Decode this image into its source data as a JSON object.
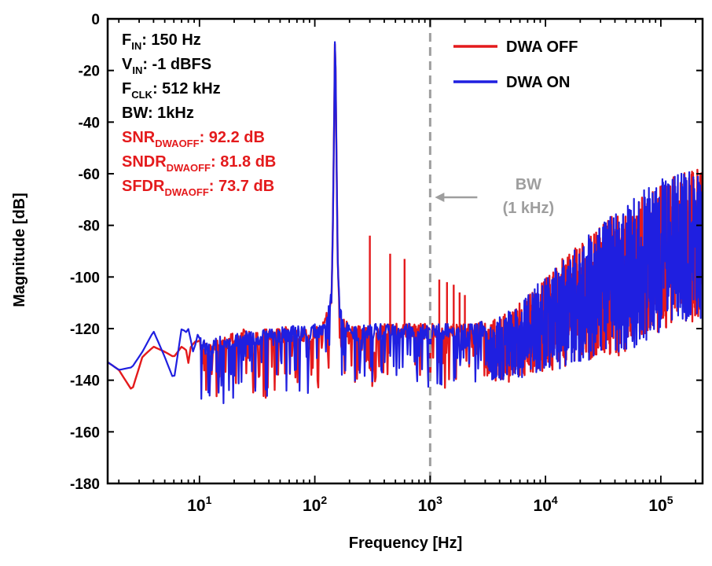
{
  "chart_data": {
    "type": "line",
    "xscale": "log",
    "xlabel": "Frequency [Hz]",
    "ylabel": "Magnitude [dB]",
    "xlim": [
      1.6,
      230000
    ],
    "ylim": [
      -180,
      0
    ],
    "yticks": [
      0,
      -20,
      -40,
      -60,
      -80,
      -100,
      -120,
      -140,
      -160,
      -180
    ],
    "xticks": [
      {
        "value": 10,
        "base": "10",
        "exp": "1"
      },
      {
        "value": 100,
        "base": "10",
        "exp": "2"
      },
      {
        "value": 1000,
        "base": "10",
        "exp": "3"
      },
      {
        "value": 10000,
        "base": "10",
        "exp": "4"
      },
      {
        "value": 100000,
        "base": "10",
        "exp": "5"
      }
    ],
    "grid": false,
    "legend_position": "top-right",
    "series": [
      {
        "name": "DWA OFF",
        "color": "#e41a1c",
        "points": [
          [
            1.6,
            -133
          ],
          [
            2,
            -136
          ],
          [
            2.6,
            -144
          ],
          [
            3.2,
            -131
          ],
          [
            4,
            -127
          ],
          [
            5,
            -129
          ],
          [
            6,
            -131
          ],
          [
            7,
            -127
          ],
          [
            8,
            -129
          ],
          [
            10,
            -126
          ],
          [
            12,
            -128
          ],
          [
            15,
            -126
          ],
          [
            20,
            -124
          ],
          [
            25,
            -123
          ],
          [
            30,
            -124
          ],
          [
            40,
            -123
          ],
          [
            60,
            -122
          ],
          [
            80,
            -122
          ],
          [
            100,
            -121
          ],
          [
            120,
            -120
          ],
          [
            135,
            -112
          ],
          [
            142,
            -95
          ],
          [
            147,
            -40
          ],
          [
            150,
            -1
          ],
          [
            153,
            -40
          ],
          [
            158,
            -95
          ],
          [
            165,
            -115
          ],
          [
            200,
            -122
          ],
          [
            300,
            -121
          ],
          [
            500,
            -121
          ],
          [
            1000,
            -121
          ],
          [
            2000,
            -121
          ],
          [
            3000,
            -120
          ],
          [
            4000,
            -117
          ],
          [
            5000,
            -114
          ],
          [
            7000,
            -108
          ],
          [
            10000,
            -101
          ],
          [
            15000,
            -93
          ],
          [
            20000,
            -88
          ],
          [
            30000,
            -81
          ],
          [
            50000,
            -73
          ],
          [
            80000,
            -66
          ],
          [
            120000,
            -62
          ],
          [
            170000,
            -60
          ],
          [
            230000,
            -59
          ]
        ],
        "spurs": [
          [
            300,
            -84
          ],
          [
            450,
            -91
          ],
          [
            600,
            -93
          ],
          [
            1200,
            -101
          ],
          [
            1400,
            -102
          ],
          [
            1600,
            -103
          ],
          [
            1800,
            -106
          ],
          [
            2000,
            -107
          ]
        ]
      },
      {
        "name": "DWA ON",
        "color": "#1f1fe0",
        "points": [
          [
            1.6,
            -133
          ],
          [
            2,
            -136
          ],
          [
            2.6,
            -135
          ],
          [
            3.2,
            -129
          ],
          [
            4,
            -121
          ],
          [
            5,
            -131
          ],
          [
            6,
            -140
          ],
          [
            7,
            -120
          ],
          [
            8,
            -122
          ],
          [
            10,
            -126
          ],
          [
            12,
            -128
          ],
          [
            15,
            -126
          ],
          [
            20,
            -124
          ],
          [
            25,
            -123
          ],
          [
            30,
            -124
          ],
          [
            40,
            -123
          ],
          [
            60,
            -122
          ],
          [
            80,
            -122
          ],
          [
            100,
            -121
          ],
          [
            120,
            -120
          ],
          [
            135,
            -112
          ],
          [
            142,
            -95
          ],
          [
            147,
            -40
          ],
          [
            150,
            0
          ],
          [
            153,
            -40
          ],
          [
            158,
            -95
          ],
          [
            165,
            -115
          ],
          [
            200,
            -122
          ],
          [
            300,
            -121
          ],
          [
            500,
            -121
          ],
          [
            1000,
            -121
          ],
          [
            2000,
            -121
          ],
          [
            3000,
            -120
          ],
          [
            4000,
            -117
          ],
          [
            5000,
            -114
          ],
          [
            7000,
            -108
          ],
          [
            10000,
            -101
          ],
          [
            15000,
            -93
          ],
          [
            20000,
            -88
          ],
          [
            30000,
            -81
          ],
          [
            50000,
            -73
          ],
          [
            80000,
            -66
          ],
          [
            120000,
            -62
          ],
          [
            170000,
            -60
          ],
          [
            230000,
            -59
          ]
        ]
      }
    ],
    "annotations": {
      "params": [
        {
          "name": "F",
          "sub": "IN",
          "value": ": 150 Hz"
        },
        {
          "name": "V",
          "sub": "IN",
          "value": ": -1 dBFS"
        },
        {
          "name": "F",
          "sub": "CLK",
          "value": ": 512 kHz"
        },
        {
          "name": "BW",
          "sub": "",
          "value": ": 1kHz"
        }
      ],
      "metrics": [
        {
          "name": "SNR",
          "sub": "DWAOFF",
          "value": ": 92.2 dB"
        },
        {
          "name": "SNDR",
          "sub": "DWAOFF",
          "value": ": 81.8 dB"
        },
        {
          "name": "SFDR",
          "sub": "DWAOFF",
          "value": ": 73.7 dB"
        }
      ],
      "metrics_color": "#e41a1c",
      "bw_marker": {
        "x": 1000,
        "label_line1": "BW",
        "label_line2": "(1 kHz)",
        "color": "#9e9e9e"
      }
    }
  }
}
